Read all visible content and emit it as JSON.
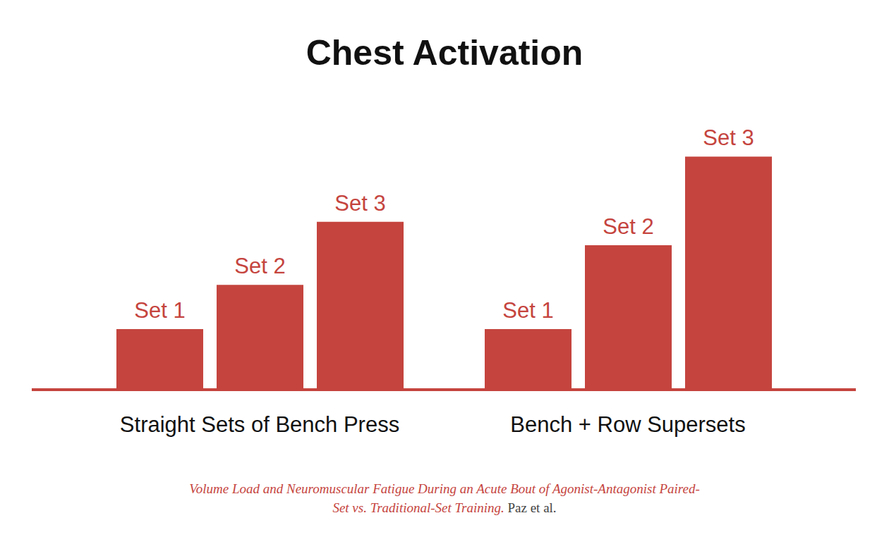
{
  "chart_data": {
    "type": "bar",
    "title": "Chest Activation",
    "categories": [
      "Straight Sets of Bench Press",
      "Bench + Row Supersets"
    ],
    "series": [
      {
        "name": "Set 1",
        "color": "#c5443e",
        "values": [
          26,
          26
        ]
      },
      {
        "name": "Set 2",
        "color": "#c5443e",
        "values": [
          45,
          62
        ]
      },
      {
        "name": "Set 3",
        "color": "#c5443e",
        "values": [
          72,
          100
        ]
      }
    ],
    "ylim": [
      0,
      120
    ],
    "tick_labels": "x",
    "grid": false,
    "source": {
      "title": "Volume Load and Neuromuscular Fatigue During an Acute Bout of Agonist-Antagonist Paired-Set vs. Traditional-Set Training.",
      "authors": "Paz et al."
    }
  }
}
